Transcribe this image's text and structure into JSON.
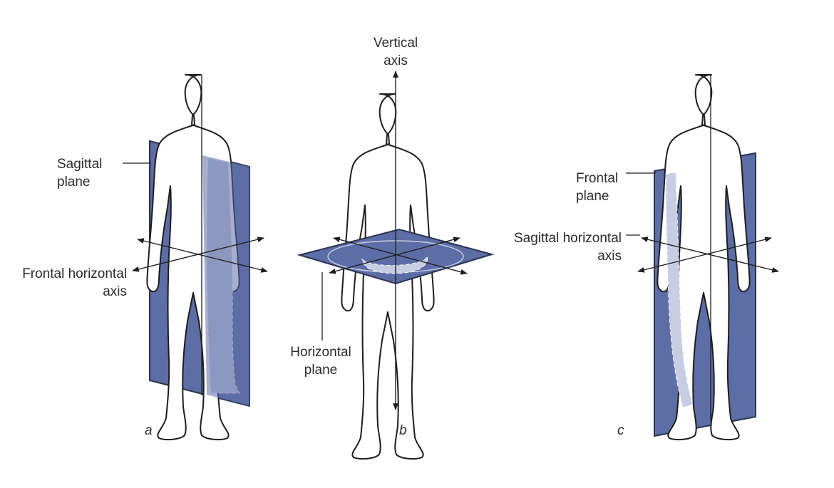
{
  "panels": [
    {
      "id": "a",
      "letter": "a",
      "plane_label": [
        "Sagittal",
        "plane"
      ],
      "axis_label": [
        "Frontal horizontal",
        "axis"
      ]
    },
    {
      "id": "b",
      "letter": "b",
      "axis_label": [
        "Vertical",
        "axis"
      ],
      "plane_label": [
        "Horizontal",
        "plane"
      ]
    },
    {
      "id": "c",
      "letter": "c",
      "plane_label": [
        "Frontal",
        "plane"
      ],
      "axis_label": [
        "Sagittal horizontal",
        "axis"
      ]
    }
  ],
  "colors": {
    "plane_fill": "#5d6ea6",
    "plane_edge": "#2c3350",
    "body_fill": "#ffffff",
    "body_stroke": "#1e1e1e",
    "shaded_body": "#c7cde3",
    "text": "#2b2b2b"
  },
  "icons": {
    "figure": "human-figure-icon",
    "arrow": "double-arrow-icon"
  }
}
